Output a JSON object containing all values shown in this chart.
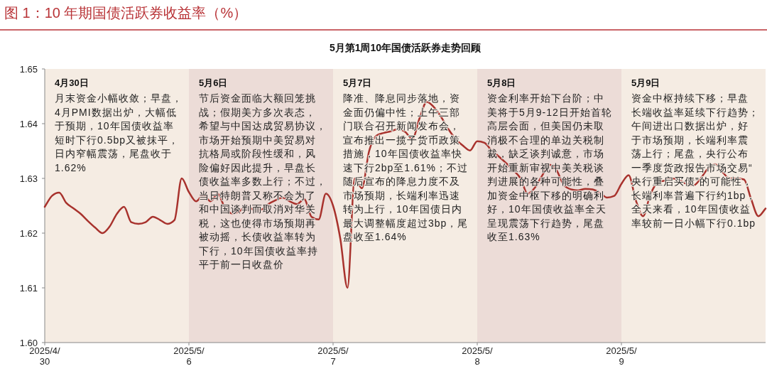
{
  "chart_data": {
    "type": "line",
    "title": "图 1：10 年期国债活跃券收益率（%）",
    "subtitle": "5月第1周10年国债活跃券走势回顾",
    "categories": [
      "2025/4/30",
      null,
      null,
      null,
      null,
      null,
      null,
      null,
      null,
      null,
      null,
      null,
      null,
      null,
      null,
      null,
      null,
      null,
      null,
      null,
      "2025/5/6",
      null,
      null,
      null,
      null,
      null,
      null,
      null,
      null,
      null,
      null,
      null,
      null,
      null,
      null,
      null,
      null,
      null,
      null,
      null,
      "2025/5/7",
      null,
      null,
      null,
      null,
      null,
      null,
      null,
      null,
      null,
      null,
      null,
      null,
      null,
      null,
      null,
      null,
      null,
      null,
      null,
      "2025/5/8",
      null,
      null,
      null,
      null,
      null,
      null,
      null,
      null,
      null,
      null,
      null,
      null,
      null,
      null,
      null,
      null,
      null,
      null,
      null,
      "2025/5/9",
      null,
      null,
      null,
      null,
      null,
      null,
      null,
      null,
      null,
      null,
      null,
      null,
      null,
      null,
      null,
      null,
      null,
      null,
      null,
      null
    ],
    "series": [
      {
        "color": "#a8322d",
        "values": [
          1.6248,
          1.6268,
          1.6274,
          1.6255,
          1.6245,
          1.6235,
          1.6222,
          1.621,
          1.62,
          1.6212,
          1.6235,
          1.6248,
          1.622,
          1.6217,
          1.622,
          1.623,
          1.6224,
          1.6217,
          1.6224,
          1.63,
          1.6275,
          1.6258,
          1.627,
          1.6258,
          1.6272,
          1.6246,
          1.6236,
          1.624,
          1.625,
          1.6243,
          1.6243,
          1.6253,
          1.626,
          1.6265,
          1.6258,
          1.6253,
          1.6262,
          1.623,
          1.6225,
          1.6272,
          1.625,
          1.619,
          1.61,
          1.63,
          1.6282,
          1.635,
          1.6378,
          1.6383,
          1.6386,
          1.639,
          1.6385,
          1.6372,
          1.641,
          1.644,
          1.643,
          1.6412,
          1.639,
          1.6372,
          1.636,
          1.6351,
          1.6368,
          1.6365,
          1.6351,
          1.634,
          1.6328,
          1.6315,
          1.63,
          1.6272,
          1.6283,
          1.6305,
          1.6325,
          1.6315,
          1.6288,
          1.628,
          1.6278,
          1.6281,
          1.628,
          1.6274,
          1.6265,
          1.6268,
          1.629,
          1.6306,
          1.626,
          1.6231,
          1.627,
          1.6292,
          1.6296,
          1.63,
          1.6297,
          1.629,
          1.6287,
          1.63,
          1.6318,
          1.6326,
          1.6312,
          1.63,
          1.63,
          1.6298,
          1.6262,
          1.6231,
          1.6245
        ]
      }
    ],
    "ylim": [
      1.6,
      1.65
    ],
    "yticks": [
      {
        "value": 1.6,
        "label": "1.60"
      },
      1.61,
      1.62,
      1.63,
      1.64,
      1.65
    ],
    "bands": [
      {
        "axis": "x",
        "from": "2025/5/6",
        "to": "2025/5/7",
        "label": "5月6日",
        "color": "#ecdcd7"
      },
      {
        "axis": "x",
        "from": "2025/5/8",
        "to": "2025/5/9",
        "label": "5月8日",
        "color": "#ecdcd7"
      }
    ],
    "annotations": [
      "月末资金小幅收敛；早盘，4月PMI数据出炉，大幅低于预期，10年国债收益率短时下行0.5bp又被抹平，日内窄幅震荡，尾盘收于1.62%",
      "节后资金面临大额回笼挑战；假期美方多次表态，希望与中国达成贸易协议，市场开始预期中美贸易对抗格局或阶段性缓和，风险偏好因此提升，早盘长债收益率多数上行；不过，当日特朗普又称不会为了和中国谈判而取消对华关税，这也使得市场预期再被动摇，长债收益率转为下行，10年国债收益率持平于前一日收盘价",
      "降准、降息同步落地，资金面仍偏中性；上午三部门联合召开新闻发布会，宣布推出一揽子货币政策措施，10年国债收益率快速下行2bp至1.61%；不过随后宣布的降息力度不及市场预期，长端利率迅速转为上行，10年国债日内最大调整幅度超过3bp，尾盘收至1.64%",
      "资金利率开始下台阶；中美将于5月9-12日开始首轮高层会面，但美国仍未取消极不合理的单边关税制裁，缺乏谈判诚意，市场开始重新审视中美关税谈判进展的各种可能性，叠加资金中枢下移的明确利好，10年国债收益率全天呈现震荡下行趋势，尾盘收至1.63%",
      "资金中枢持续下移；早盘长端收益率延续下行趋势；午间进出口数据出炉，好于市场预期，长端利率震荡上行；尾盘，央行公布一季度货政报告市场交易“央行重启买债”的可能性，长端利率普遍下行约1bp，全天来看，10年国债收益率较前一日小幅下行0.1bp",
      "4月30日",
      "5月7日",
      "5月9日"
    ]
  }
}
